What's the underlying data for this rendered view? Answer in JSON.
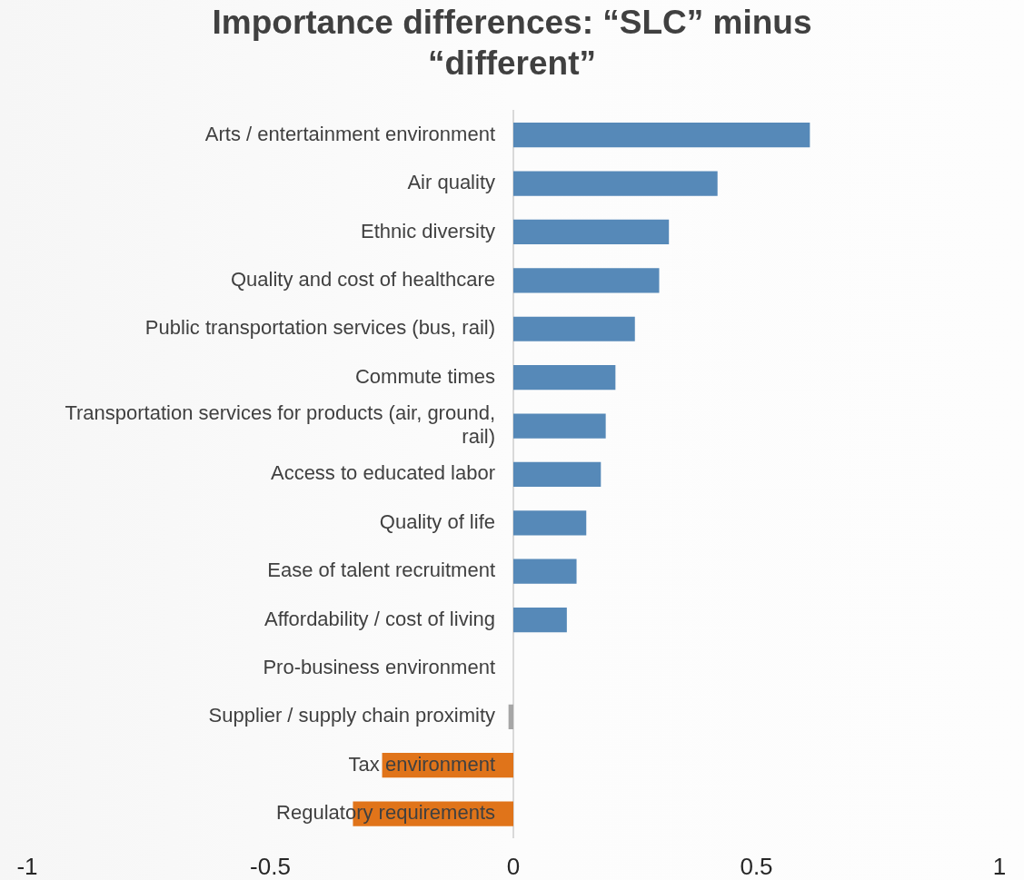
{
  "chart_data": {
    "type": "bar",
    "orientation": "horizontal",
    "title": "Importance differences: “SLC” minus “different”",
    "categories": [
      "Arts / entertainment environment",
      "Air quality",
      "Ethnic diversity",
      "Quality and cost of healthcare",
      "Public transportation services (bus, rail)",
      "Commute times",
      "Transportation services for products (air, ground, rail)",
      "Access to educated labor",
      "Quality of life",
      "Ease of talent recruitment",
      "Affordability / cost of living",
      "Pro-business environment",
      "Supplier / supply chain proximity",
      "Tax environment",
      "Regulatory requirements"
    ],
    "values": [
      0.61,
      0.42,
      0.32,
      0.3,
      0.25,
      0.21,
      0.19,
      0.18,
      0.15,
      0.13,
      0.11,
      0,
      -0.01,
      -0.27,
      -0.33
    ],
    "colors": [
      "#5689b8",
      "#5689b8",
      "#5689b8",
      "#5689b8",
      "#5689b8",
      "#5689b8",
      "#5689b8",
      "#5689b8",
      "#5689b8",
      "#5689b8",
      "#5689b8",
      "#a6a6a6",
      "#a6a6a6",
      "#e0741a",
      "#e0741a"
    ],
    "xlim": [
      -1,
      1
    ],
    "xticks": [
      -1,
      -0.5,
      0,
      0.5,
      1
    ]
  }
}
